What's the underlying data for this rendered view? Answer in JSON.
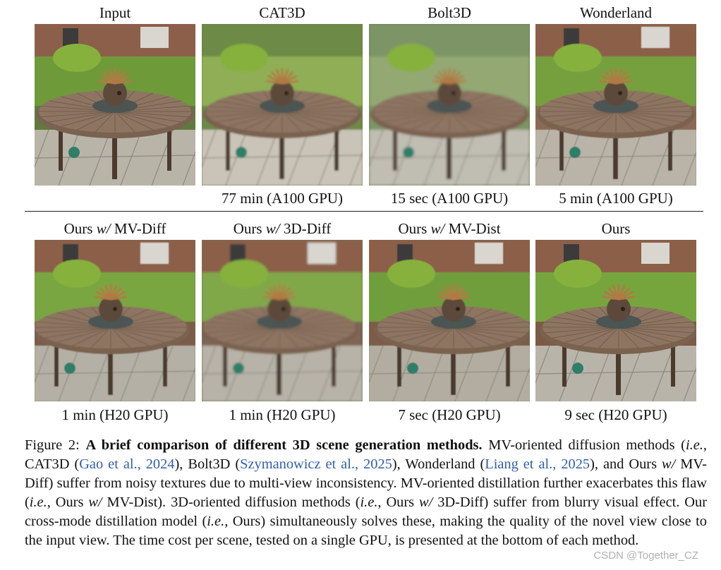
{
  "figure": {
    "top_row": {
      "titles": [
        "Input",
        "CAT3D",
        "Bolt3D",
        "Wonderland"
      ],
      "timings": [
        "",
        "77 min (A100 GPU)",
        "15 sec (A100 GPU)",
        "5 min (A100 GPU)"
      ]
    },
    "bottom_row": {
      "titles": [
        {
          "pre": "Ours ",
          "em": "w/",
          "post": " MV-Diff"
        },
        {
          "pre": "Ours ",
          "em": "w/",
          "post": " 3D-Diff"
        },
        {
          "pre": "Ours ",
          "em": "w/",
          "post": " MV-Dist"
        },
        {
          "pre": "Ours",
          "em": "",
          "post": ""
        }
      ],
      "timings": [
        "1 min (H20 GPU)",
        "1 min (H20 GPU)",
        "7 sec (H20 GPU)",
        "9 sec (H20 GPU)"
      ]
    }
  },
  "caption": {
    "label": "Figure 2:",
    "bold_title": "A brief comparison of different 3D scene generation methods.",
    "s1": "MV-oriented diffusion methods (",
    "ie": "i.e.",
    "s2": ", CAT3D (",
    "cite_gao": "Gao et al., 2024",
    "s3": "), Bolt3D (",
    "cite_szy": "Szymanowicz et al., 2025",
    "s4": "), Wonderland (",
    "cite_liang": "Liang et al., 2025",
    "s5": "), and Ours ",
    "wslash": "w/",
    "s6": " MV-Diff) suffer from noisy textures due to multi-view inconsistency. MV-oriented distillation further exacerbates this flaw (",
    "s7": ", Ours ",
    "s8": " MV-Dist). 3D-oriented diffusion methods (",
    "s9": ", Ours ",
    "s10": " 3D-Diff) suffer from blurry visual effect. Our cross-mode distillation model (",
    "s11": ", Ours) simultaneously solves these, making the quality of the novel view close to the input view. The time cost per scene, tested on a single GPU, is presented at the bottom of each method."
  },
  "watermark": "CSDN @Together_CZ",
  "colors": {
    "citation": "#2f5fa8",
    "text": "#111111"
  }
}
